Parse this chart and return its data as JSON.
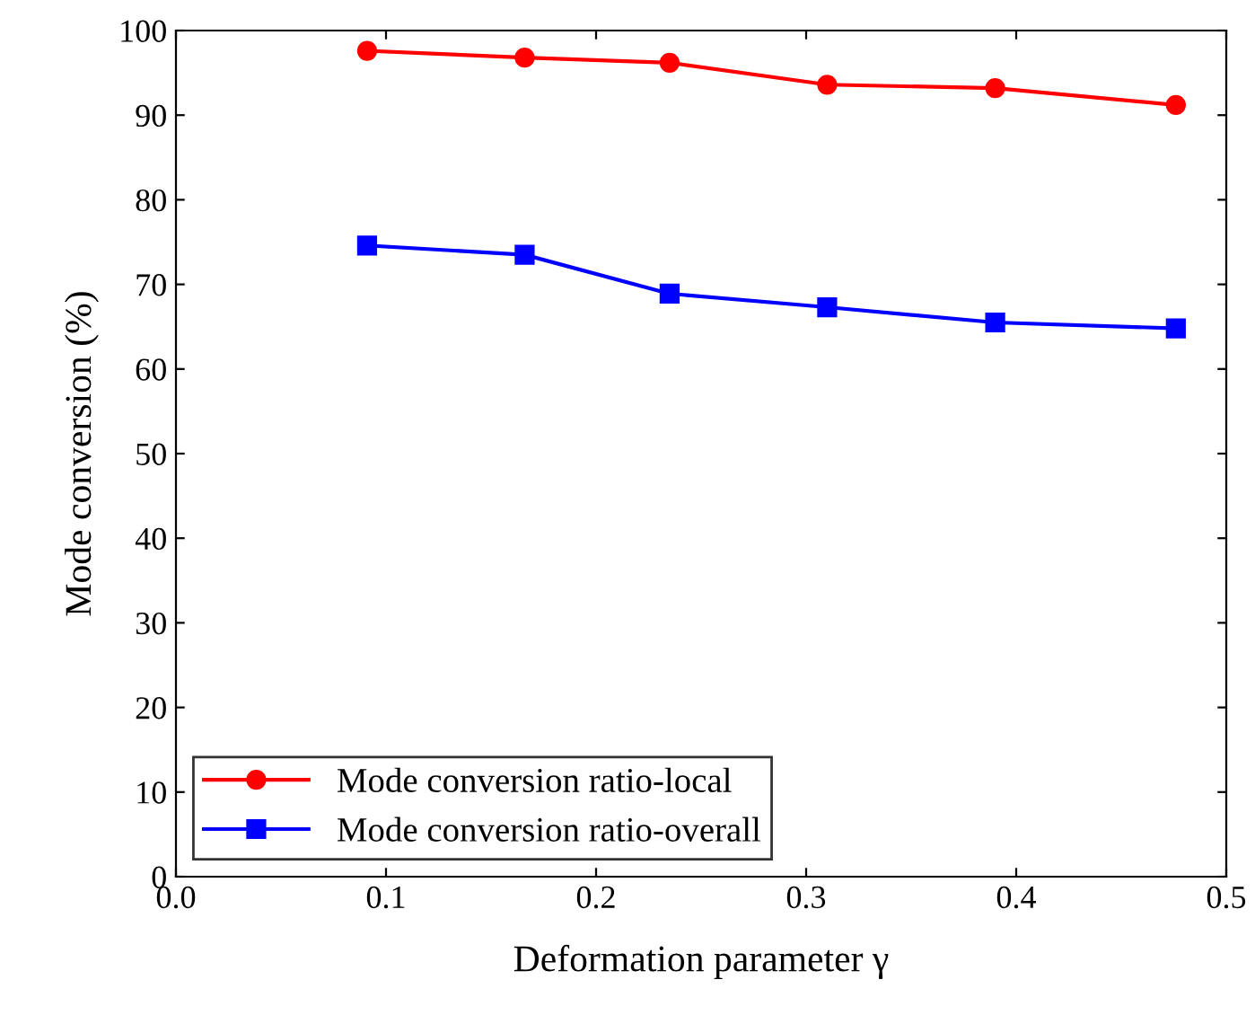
{
  "chart_data": {
    "type": "line",
    "xlabel": "Deformation parameter γ",
    "ylabel": "Mode conversion (%)",
    "x": [
      0.091,
      0.166,
      0.235,
      0.31,
      0.39,
      0.476
    ],
    "series": [
      {
        "name": "Mode conversion ratio-local",
        "color": "#ff0000",
        "marker": "circle",
        "values": [
          97.6,
          96.8,
          96.2,
          93.6,
          93.2,
          91.2
        ]
      },
      {
        "name": "Mode conversion ratio-overall",
        "color": "#0000ff",
        "marker": "square",
        "values": [
          74.6,
          73.5,
          68.9,
          67.3,
          65.5,
          64.8
        ]
      }
    ],
    "xlim": [
      0,
      0.5
    ],
    "xticks": [
      {
        "value": 0,
        "label": "0.0"
      },
      0.1,
      0.2,
      0.3,
      0.4,
      0.5
    ],
    "ylim": [
      0,
      100
    ],
    "yticks": [
      0,
      10,
      20,
      30,
      40,
      50,
      60,
      70,
      80,
      90,
      100
    ],
    "legend": "bottom left",
    "grid": false,
    "line_style": "solid"
  }
}
